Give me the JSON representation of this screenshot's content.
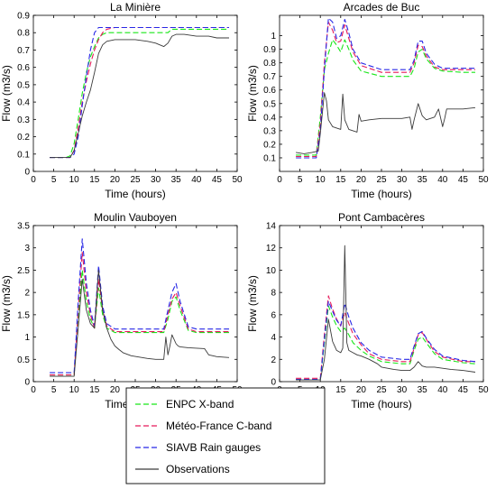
{
  "colors": {
    "enpc": "#19e619",
    "meteo": "#e6195a",
    "siavb": "#2828e6",
    "obs": "#3a3a3a"
  },
  "legend": [
    {
      "name": "ENPC X-band",
      "color": "#19e619",
      "dash": true
    },
    {
      "name": "Météo-France C-band",
      "color": "#e6195a",
      "dash": true
    },
    {
      "name": "SIAVB Rain gauges",
      "color": "#2828e6",
      "dash": true
    },
    {
      "name": "Observations",
      "color": "#3a3a3a",
      "dash": false
    }
  ],
  "chart_data": [
    {
      "type": "line",
      "title": "La Minière",
      "xlabel": "Time (hours)",
      "ylabel": "Flow (m3/s)",
      "xlim": [
        0,
        50
      ],
      "ylim": [
        0,
        0.9
      ],
      "xticks": [
        0,
        5,
        10,
        15,
        20,
        25,
        30,
        35,
        40,
        45,
        50
      ],
      "yticks": [
        0,
        0.1,
        0.2,
        0.3,
        0.4,
        0.5,
        0.6,
        0.7,
        0.8,
        0.9
      ],
      "series": [
        {
          "name": "ENPC X-band",
          "x": [
            4,
            8,
            9,
            10,
            11,
            12,
            13,
            14,
            15,
            16,
            17,
            18,
            20,
            22,
            25,
            28,
            30,
            31,
            32,
            33,
            34,
            35,
            40,
            45,
            48
          ],
          "y": [
            0.08,
            0.08,
            0.09,
            0.16,
            0.3,
            0.45,
            0.57,
            0.66,
            0.72,
            0.77,
            0.79,
            0.8,
            0.8,
            0.8,
            0.8,
            0.8,
            0.8,
            0.8,
            0.8,
            0.8,
            0.82,
            0.82,
            0.82,
            0.82,
            0.82
          ]
        },
        {
          "name": "Météo-France C-band",
          "x": [
            4,
            8,
            9,
            10,
            11,
            12,
            13,
            14,
            15,
            16,
            17,
            18,
            20,
            22,
            25,
            28,
            30,
            31,
            32,
            33,
            34,
            35,
            40,
            45,
            48
          ],
          "y": [
            0.08,
            0.08,
            0.08,
            0.12,
            0.25,
            0.4,
            0.52,
            0.62,
            0.7,
            0.76,
            0.8,
            0.82,
            0.83,
            0.83,
            0.83,
            0.83,
            0.83,
            0.83,
            0.83,
            0.83,
            0.83,
            0.83,
            0.83,
            0.83,
            0.83
          ]
        },
        {
          "name": "SIAVB Rain gauges",
          "x": [
            4,
            8,
            9,
            10,
            11,
            12,
            13,
            14,
            15,
            16,
            17,
            18,
            20,
            22,
            25,
            28,
            30,
            31,
            32,
            33,
            34,
            35,
            40,
            45,
            48
          ],
          "y": [
            0.08,
            0.08,
            0.08,
            0.1,
            0.2,
            0.38,
            0.55,
            0.7,
            0.8,
            0.83,
            0.83,
            0.83,
            0.83,
            0.83,
            0.83,
            0.83,
            0.83,
            0.83,
            0.83,
            0.83,
            0.83,
            0.83,
            0.83,
            0.83,
            0.83
          ]
        },
        {
          "name": "Observations",
          "x": [
            4,
            9,
            10,
            11,
            12,
            13,
            14,
            15,
            16,
            17,
            18,
            20,
            22,
            25,
            28,
            30,
            31,
            32,
            33,
            34,
            35,
            37,
            40,
            43,
            45,
            48
          ],
          "y": [
            0.08,
            0.08,
            0.12,
            0.22,
            0.32,
            0.4,
            0.47,
            0.57,
            0.68,
            0.73,
            0.75,
            0.76,
            0.76,
            0.76,
            0.75,
            0.74,
            0.73,
            0.72,
            0.74,
            0.78,
            0.79,
            0.79,
            0.78,
            0.78,
            0.77,
            0.77
          ]
        }
      ]
    },
    {
      "type": "line",
      "title": "Arcades de Buc",
      "xlabel": "Time (hours)",
      "ylabel": "Flow (m3/s)",
      "xlim": [
        0,
        50
      ],
      "ylim": [
        0,
        1.15
      ],
      "xticks": [
        0,
        5,
        10,
        15,
        20,
        25,
        30,
        35,
        40,
        45,
        50
      ],
      "yticks": [
        0.1,
        0.2,
        0.3,
        0.4,
        0.5,
        0.6,
        0.7,
        0.8,
        0.9,
        1
      ],
      "series": [
        {
          "name": "ENPC X-band",
          "x": [
            4,
            9,
            10,
            11,
            12,
            13,
            14,
            15,
            16,
            17,
            18,
            20,
            25,
            30,
            32,
            33,
            34,
            35,
            36,
            38,
            40,
            45,
            48
          ],
          "y": [
            0.12,
            0.12,
            0.4,
            0.75,
            0.87,
            0.97,
            0.93,
            0.88,
            0.97,
            0.9,
            0.82,
            0.74,
            0.7,
            0.7,
            0.7,
            0.76,
            0.88,
            0.9,
            0.83,
            0.76,
            0.74,
            0.73,
            0.73
          ]
        },
        {
          "name": "Météo-France C-band",
          "x": [
            4,
            9,
            10,
            11,
            12,
            13,
            14,
            15,
            16,
            17,
            18,
            20,
            25,
            30,
            32,
            33,
            34,
            35,
            36,
            38,
            40,
            45,
            48
          ],
          "y": [
            0.11,
            0.11,
            0.35,
            0.8,
            1.1,
            1.04,
            0.95,
            0.96,
            1.08,
            0.98,
            0.88,
            0.78,
            0.73,
            0.73,
            0.73,
            0.8,
            0.93,
            0.92,
            0.85,
            0.77,
            0.75,
            0.75,
            0.75
          ]
        },
        {
          "name": "SIAVB Rain gauges",
          "x": [
            4,
            9,
            10,
            11,
            12,
            13,
            14,
            15,
            16,
            17,
            18,
            20,
            25,
            30,
            32,
            33,
            34,
            35,
            36,
            38,
            40,
            45,
            48
          ],
          "y": [
            0.1,
            0.1,
            0.3,
            0.75,
            1.13,
            1.1,
            0.98,
            1.0,
            1.12,
            1.02,
            0.9,
            0.8,
            0.75,
            0.75,
            0.75,
            0.82,
            0.96,
            0.96,
            0.87,
            0.79,
            0.76,
            0.76,
            0.76
          ]
        },
        {
          "name": "Observations",
          "x": [
            4,
            6,
            8,
            9.5,
            10,
            11,
            11.5,
            12,
            13,
            14,
            15,
            15.5,
            16,
            17,
            18,
            19,
            19.5,
            20,
            22,
            25,
            28,
            30,
            32,
            32.5,
            33,
            34,
            35,
            36,
            38,
            39,
            40,
            40.5,
            41,
            43,
            45,
            48
          ],
          "y": [
            0.14,
            0.13,
            0.14,
            0.15,
            0.28,
            0.58,
            0.52,
            0.38,
            0.33,
            0.32,
            0.31,
            0.57,
            0.38,
            0.31,
            0.3,
            0.29,
            0.42,
            0.37,
            0.38,
            0.39,
            0.39,
            0.39,
            0.4,
            0.31,
            0.38,
            0.5,
            0.41,
            0.38,
            0.4,
            0.46,
            0.33,
            0.39,
            0.46,
            0.46,
            0.46,
            0.47
          ]
        }
      ]
    },
    {
      "type": "line",
      "title": "Moulin Vauboyen",
      "xlabel": "Time (hours)",
      "ylabel": "Flow (m3/s)",
      "xlim": [
        0,
        50
      ],
      "ylim": [
        0,
        3.5
      ],
      "xticks": [
        0,
        5,
        10,
        15,
        20,
        25,
        30,
        35,
        40,
        45,
        50
      ],
      "yticks": [
        0,
        0.5,
        1,
        1.5,
        2,
        2.5,
        3,
        3.5
      ],
      "series": [
        {
          "name": "ENPC X-band",
          "x": [
            4,
            10,
            11,
            12,
            13,
            14,
            15,
            16,
            17,
            18,
            20,
            25,
            30,
            32,
            33,
            34,
            35,
            36,
            38,
            40,
            45,
            48
          ],
          "y": [
            0.15,
            0.15,
            1.4,
            2.5,
            1.8,
            1.4,
            1.2,
            2.1,
            1.5,
            1.2,
            1.1,
            1.1,
            1.1,
            1.1,
            1.4,
            1.8,
            1.9,
            1.6,
            1.15,
            1.1,
            1.1,
            1.1
          ]
        },
        {
          "name": "Météo-France C-band",
          "x": [
            4,
            10,
            11,
            12,
            13,
            14,
            15,
            16,
            17,
            18,
            20,
            25,
            30,
            32,
            33,
            34,
            35,
            36,
            38,
            40,
            45,
            48
          ],
          "y": [
            0.15,
            0.15,
            1.6,
            2.9,
            2.0,
            1.5,
            1.2,
            2.3,
            1.6,
            1.25,
            1.12,
            1.12,
            1.12,
            1.12,
            1.5,
            1.85,
            2.0,
            1.7,
            1.18,
            1.12,
            1.12,
            1.12
          ]
        },
        {
          "name": "SIAVB Rain gauges",
          "x": [
            4,
            10,
            11,
            12,
            13,
            14,
            15,
            16,
            17,
            18,
            20,
            25,
            30,
            32,
            33,
            34,
            35,
            36,
            38,
            40,
            45,
            48
          ],
          "y": [
            0.2,
            0.2,
            1.8,
            3.2,
            2.2,
            1.6,
            1.25,
            2.6,
            1.7,
            1.3,
            1.18,
            1.18,
            1.18,
            1.18,
            1.6,
            2.0,
            2.2,
            1.8,
            1.23,
            1.18,
            1.18,
            1.18
          ]
        },
        {
          "name": "Observations",
          "x": [
            4,
            10,
            11,
            12,
            13,
            14,
            15,
            16,
            17,
            18,
            19,
            20,
            21,
            22,
            24,
            26,
            28,
            30,
            32,
            32.5,
            33,
            33.5,
            34,
            35,
            35.5,
            36,
            38,
            40,
            42,
            43,
            45,
            48
          ],
          "y": [
            0.12,
            0.12,
            1.2,
            2.3,
            1.6,
            1.3,
            1.2,
            2.5,
            1.6,
            1.2,
            0.95,
            0.8,
            0.72,
            0.65,
            0.58,
            0.55,
            0.52,
            0.5,
            0.5,
            1.0,
            0.6,
            0.8,
            1.05,
            0.85,
            0.8,
            0.78,
            0.76,
            0.75,
            0.74,
            0.6,
            0.56,
            0.54
          ]
        }
      ]
    },
    {
      "type": "line",
      "title": "Pont Cambacères",
      "xlabel": "Time (hours)",
      "ylabel": "Flow (m3/s)",
      "xlim": [
        0,
        50
      ],
      "ylim": [
        0,
        14
      ],
      "xticks": [
        0,
        5,
        10,
        15,
        20,
        25,
        30,
        35,
        40,
        45,
        50
      ],
      "yticks": [
        0,
        2,
        4,
        6,
        8,
        10,
        12,
        14
      ],
      "series": [
        {
          "name": "ENPC X-band",
          "x": [
            4,
            10,
            11,
            12,
            13,
            14,
            15,
            16,
            17,
            18,
            20,
            22,
            25,
            30,
            32,
            33,
            34,
            35,
            36,
            38,
            40,
            45,
            48
          ],
          "y": [
            0.2,
            0.2,
            3.5,
            6.8,
            5.8,
            5.0,
            4.5,
            4.8,
            4.2,
            3.5,
            2.8,
            2.3,
            1.8,
            1.6,
            1.6,
            2.8,
            3.8,
            4.0,
            3.5,
            2.5,
            2.0,
            1.7,
            1.6
          ]
        },
        {
          "name": "Météo-France C-band",
          "x": [
            4,
            10,
            11,
            12,
            13,
            14,
            15,
            16,
            17,
            18,
            20,
            22,
            25,
            30,
            32,
            33,
            34,
            35,
            36,
            38,
            40,
            45,
            48
          ],
          "y": [
            0.3,
            0.3,
            4.2,
            7.7,
            6.5,
            5.6,
            5.0,
            6.2,
            5.2,
            4.3,
            3.3,
            2.5,
            2.0,
            1.8,
            1.8,
            3.0,
            4.2,
            4.4,
            3.8,
            2.7,
            2.2,
            1.8,
            1.8
          ]
        },
        {
          "name": "SIAVB Rain gauges",
          "x": [
            4,
            10,
            11,
            12,
            13,
            14,
            15,
            16,
            17,
            18,
            20,
            22,
            25,
            30,
            32,
            33,
            34,
            35,
            36,
            38,
            40,
            45,
            48
          ],
          "y": [
            0.2,
            0.2,
            3.8,
            7.2,
            6.3,
            5.5,
            5.0,
            7.0,
            5.8,
            4.8,
            3.5,
            2.8,
            2.2,
            2.0,
            2.0,
            3.2,
            4.3,
            4.5,
            3.9,
            2.9,
            2.3,
            1.9,
            1.8
          ]
        },
        {
          "name": "Observations",
          "x": [
            4,
            10,
            11,
            12,
            13,
            14,
            15,
            15.5,
            16,
            16.5,
            17,
            18,
            19,
            20,
            22,
            24,
            25,
            28,
            30,
            32,
            33,
            34,
            35,
            36,
            38,
            40,
            42,
            45,
            48
          ],
          "y": [
            0.15,
            0.15,
            2.0,
            5.6,
            3.6,
            2.8,
            2.6,
            3.0,
            12.2,
            3.5,
            2.8,
            2.6,
            2.4,
            2.3,
            2.0,
            1.6,
            1.3,
            1.1,
            1.0,
            1.0,
            1.3,
            1.8,
            1.4,
            1.3,
            1.3,
            1.2,
            1.1,
            1.0,
            0.85
          ]
        }
      ]
    }
  ]
}
